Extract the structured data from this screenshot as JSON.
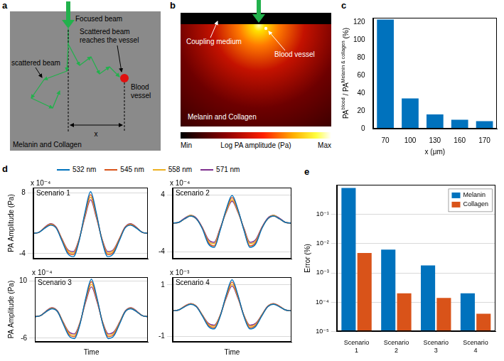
{
  "panel_a": {
    "panel": "a",
    "labels": {
      "focused_beam": "Focused beam",
      "scattered_reaches": "Scattered beam reaches the vessel",
      "scattered": "scattered beam",
      "vessel": "Blood vessel",
      "distance": "x",
      "medium": "Melanin and Collagen"
    }
  },
  "panel_b": {
    "panel": "b",
    "labels": {
      "coupling": "Coupling medium",
      "vessel": "Blood vessel",
      "medium": "Melanin and Collagen"
    },
    "colorbar": {
      "title": "Log PA amplitude (Pa)",
      "min_label": "Min",
      "max_label": "Max"
    }
  },
  "chart_data": [
    {
      "panel": "c",
      "type": "bar",
      "categories": [
        "70",
        "100",
        "130",
        "160",
        "170"
      ],
      "values": [
        123,
        34,
        16,
        10,
        8.5
      ],
      "color": "#0072BD",
      "xlabel": "x (μm)",
      "ylabel": [
        "PA",
        "blood",
        " / PA",
        "Melanin & collagen",
        " (%)"
      ],
      "ylim": [
        0,
        125
      ],
      "yticks": [
        0,
        20,
        40,
        60,
        80,
        100,
        120
      ],
      "grid": false
    },
    {
      "panel": "d",
      "type": "line",
      "annotation": "Scenario 1",
      "y_exponent": "x 10⁻⁴",
      "ylabel": "PA Amplitude (Pa)",
      "categories": [
        null,
        null,
        null,
        null,
        null,
        null,
        null,
        null,
        null,
        null,
        null,
        null,
        null,
        null,
        null,
        null,
        null,
        null,
        null,
        null,
        null
      ],
      "ylim": [
        -5,
        9
      ],
      "yticks": [
        -4,
        8
      ],
      "grid": true,
      "tick_labels": "y",
      "series": [
        {
          "name": "532 nm",
          "color": "#0072BD",
          "values": [
            0,
            0.2,
            1.0,
            1.6,
            1.0,
            -1.5,
            -4.0,
            -4.6,
            -1.5,
            4.0,
            8.2,
            4.0,
            -1.5,
            -4.6,
            -4.0,
            -1.5,
            1.0,
            1.6,
            1.0,
            0.2,
            0
          ]
        },
        {
          "name": "545 nm",
          "color": "#D95319",
          "values": [
            0,
            0.2,
            1.1,
            1.7,
            1.1,
            -1.3,
            -3.7,
            -4.2,
            -1.3,
            3.7,
            7.6,
            3.7,
            -1.3,
            -4.2,
            -3.7,
            -1.3,
            1.1,
            1.7,
            1.1,
            0.2,
            0
          ]
        },
        {
          "name": "558 nm",
          "color": "#EDB120",
          "values": [
            0,
            0.2,
            1.1,
            1.8,
            1.1,
            -1.2,
            -3.4,
            -3.9,
            -1.2,
            3.4,
            7.1,
            3.4,
            -1.2,
            -3.9,
            -3.4,
            -1.2,
            1.1,
            1.8,
            1.1,
            0.2,
            0
          ]
        },
        {
          "name": "571 nm",
          "color": "#7E2F8E",
          "values": [
            0,
            0.2,
            1.2,
            1.9,
            1.2,
            -1.1,
            -3.2,
            -3.6,
            -1.1,
            3.1,
            6.6,
            3.1,
            -1.1,
            -3.6,
            -3.2,
            -1.1,
            1.2,
            1.9,
            1.2,
            0.2,
            0
          ]
        }
      ]
    },
    {
      "type": "line",
      "annotation": "Scenario 2",
      "y_exponent": "x 10⁻⁴",
      "categories": [
        null,
        null,
        null,
        null,
        null,
        null,
        null,
        null,
        null,
        null,
        null,
        null,
        null,
        null,
        null,
        null,
        null,
        null,
        null,
        null,
        null
      ],
      "ylim": [
        -5,
        5
      ],
      "yticks": [
        -4,
        4
      ],
      "grid": true,
      "tick_labels": "y",
      "series": [
        {
          "name": "532 nm",
          "color": "#0072BD",
          "values": [
            0,
            0.1,
            0.6,
            1.0,
            0.6,
            -0.8,
            -2.9,
            -3.4,
            -1.0,
            1.9,
            3.9,
            1.9,
            -1.0,
            -3.4,
            -2.9,
            -0.8,
            0.6,
            1.0,
            0.6,
            0.1,
            0
          ]
        },
        {
          "name": "545 nm",
          "color": "#D95319",
          "values": [
            0,
            0.1,
            0.6,
            1.0,
            0.6,
            -0.7,
            -2.7,
            -3.2,
            -0.9,
            1.8,
            3.6,
            1.8,
            -0.9,
            -3.2,
            -2.7,
            -0.7,
            0.6,
            1.0,
            0.6,
            0.1,
            0
          ]
        },
        {
          "name": "558 nm",
          "color": "#EDB120",
          "values": [
            0,
            0.1,
            0.6,
            1.1,
            0.6,
            -0.7,
            -2.5,
            -2.9,
            -0.8,
            1.6,
            3.3,
            1.6,
            -0.8,
            -2.9,
            -2.5,
            -0.7,
            0.6,
            1.1,
            0.6,
            0.1,
            0
          ]
        },
        {
          "name": "571 nm",
          "color": "#7E2F8E",
          "values": [
            0,
            0.1,
            0.7,
            1.1,
            0.7,
            -0.6,
            -2.3,
            -2.7,
            -0.7,
            1.5,
            3.1,
            1.5,
            -0.7,
            -2.7,
            -2.3,
            -0.6,
            0.7,
            1.1,
            0.7,
            0.1,
            0
          ]
        }
      ]
    },
    {
      "type": "line",
      "annotation": "Scenario 3",
      "y_exponent": "x 10⁻⁴",
      "ylabel": "PA Amplitude (Pa)",
      "xlabel": "Time",
      "categories": [
        null,
        null,
        null,
        null,
        null,
        null,
        null,
        null,
        null,
        null,
        null,
        null,
        null,
        null,
        null,
        null,
        null,
        null,
        null,
        null,
        null
      ],
      "ylim": [
        -7,
        11
      ],
      "yticks": [
        -6,
        10
      ],
      "grid": true,
      "tick_labels": "y",
      "series": [
        {
          "name": "532 nm",
          "color": "#0072BD",
          "values": [
            0,
            0.3,
            1.4,
            2.2,
            1.4,
            -2.0,
            -5.3,
            -6.1,
            -2.0,
            5.2,
            10.4,
            5.2,
            -2.0,
            -6.1,
            -5.3,
            -2.0,
            1.4,
            2.2,
            1.4,
            0.3,
            0
          ]
        },
        {
          "name": "545 nm",
          "color": "#D95319",
          "values": [
            0,
            0.3,
            1.4,
            2.3,
            1.4,
            -1.8,
            -4.9,
            -5.6,
            -1.8,
            4.8,
            9.7,
            4.8,
            -1.8,
            -5.6,
            -4.9,
            -1.8,
            1.4,
            2.3,
            1.4,
            0.3,
            0
          ]
        },
        {
          "name": "558 nm",
          "color": "#EDB120",
          "values": [
            0,
            0.3,
            1.5,
            2.4,
            1.5,
            -1.6,
            -4.5,
            -5.2,
            -1.6,
            4.5,
            9.0,
            4.5,
            -1.6,
            -5.2,
            -4.5,
            -1.6,
            1.5,
            2.4,
            1.5,
            0.3,
            0
          ]
        },
        {
          "name": "571 nm",
          "color": "#7E2F8E",
          "values": [
            0,
            0.3,
            1.6,
            2.5,
            1.6,
            -1.5,
            -4.2,
            -4.8,
            -1.5,
            4.1,
            8.3,
            4.1,
            -1.5,
            -4.8,
            -4.2,
            -1.5,
            1.6,
            2.5,
            1.6,
            0.3,
            0
          ]
        }
      ]
    },
    {
      "type": "line",
      "annotation": "Scenario 4",
      "y_exponent": "x 10⁻³",
      "xlabel": "Time",
      "categories": [
        null,
        null,
        null,
        null,
        null,
        null,
        null,
        null,
        null,
        null,
        null,
        null,
        null,
        null,
        null,
        null,
        null,
        null,
        null,
        null,
        null
      ],
      "ylim": [
        -1.2,
        1.3
      ],
      "yticks": [
        -1,
        1
      ],
      "grid": true,
      "tick_labels": "y",
      "series": [
        {
          "name": "532 nm",
          "color": "#0072BD",
          "values": [
            0,
            0.03,
            0.15,
            0.25,
            0.15,
            -0.2,
            -0.6,
            -0.7,
            -0.22,
            0.6,
            1.2,
            0.6,
            -0.22,
            -0.7,
            -0.6,
            -0.2,
            0.15,
            0.25,
            0.15,
            0.03,
            0
          ]
        },
        {
          "name": "545 nm",
          "color": "#D95319",
          "values": [
            0,
            0.03,
            0.16,
            0.26,
            0.16,
            -0.19,
            -0.56,
            -0.65,
            -0.2,
            0.56,
            1.11,
            0.56,
            -0.2,
            -0.65,
            -0.56,
            -0.19,
            0.16,
            0.26,
            0.16,
            0.03,
            0
          ]
        },
        {
          "name": "558 nm",
          "color": "#EDB120",
          "values": [
            0,
            0.03,
            0.17,
            0.27,
            0.17,
            -0.17,
            -0.52,
            -0.6,
            -0.18,
            0.52,
            1.03,
            0.52,
            -0.18,
            -0.6,
            -0.52,
            -0.17,
            0.17,
            0.27,
            0.17,
            0.03,
            0
          ]
        },
        {
          "name": "571 nm",
          "color": "#7E2F8E",
          "values": [
            0,
            0.03,
            0.18,
            0.28,
            0.18,
            -0.16,
            -0.48,
            -0.56,
            -0.17,
            0.48,
            0.96,
            0.48,
            -0.17,
            -0.56,
            -0.48,
            -0.16,
            0.18,
            0.28,
            0.18,
            0.03,
            0
          ]
        }
      ]
    },
    {
      "panel": "e",
      "type": "bar",
      "log": "y",
      "categories": [
        "Scenario 1",
        "Scenario 2",
        "Scenario 3",
        "Scenario 4"
      ],
      "ylabel": "Error (%)",
      "ylim": [
        1e-05,
        1
      ],
      "yticks": [
        {
          "value": 1e-05,
          "label": "10⁻⁵"
        },
        {
          "value": 0.0001,
          "label": "10⁻⁴"
        },
        {
          "value": 0.001,
          "label": "10⁻³"
        },
        {
          "value": 0.01,
          "label": "10⁻²"
        },
        {
          "value": 0.1,
          "label": "10⁻¹"
        }
      ],
      "grid": true,
      "legend": "upper right",
      "series": [
        {
          "name": "Melanin",
          "color": "#0072BD",
          "values": [
            0.8,
            0.0062,
            0.0018,
            0.0002
          ]
        },
        {
          "name": "Collagen",
          "color": "#D95319",
          "values": [
            0.0048,
            0.0002,
            0.00014,
            4e-05
          ]
        }
      ]
    }
  ]
}
